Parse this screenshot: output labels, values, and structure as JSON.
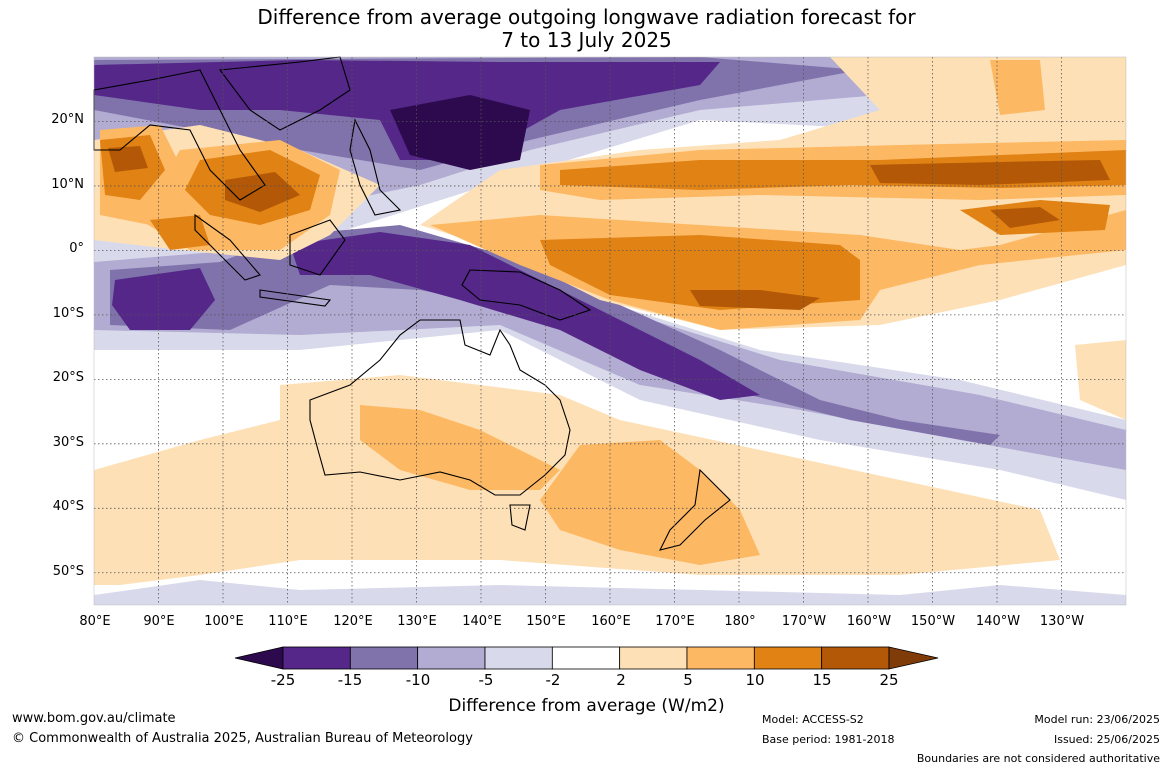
{
  "title": {
    "line1": "Difference from average outgoing longwave radiation forecast for",
    "line2": "7 to 13 July 2025"
  },
  "map": {
    "lat_labels": [
      "20°N",
      "10°N",
      "0°",
      "10°S",
      "20°S",
      "30°S",
      "40°S",
      "50°S"
    ],
    "lon_labels": [
      "80°E",
      "90°E",
      "100°E",
      "110°E",
      "120°E",
      "130°E",
      "140°E",
      "150°E",
      "160°E",
      "170°E",
      "180°",
      "170°W",
      "160°W",
      "150°W",
      "140°W",
      "130°W"
    ],
    "extent": {
      "lon_min": 80,
      "lon_max": 240,
      "lat_min": -55,
      "lat_max": 30
    }
  },
  "colorbar": {
    "ticks": [
      "-25",
      "-15",
      "-10",
      "-5",
      "-2",
      "2",
      "5",
      "10",
      "15",
      "25"
    ],
    "colors": [
      "#2d0a4e",
      "#542788",
      "#8073ac",
      "#b2abd2",
      "#d8daeb",
      "#ffffff",
      "#fee0b6",
      "#fdb863",
      "#e08214",
      "#b35806",
      "#7f3b08"
    ],
    "label": "Difference from average (W/m2)"
  },
  "footer": {
    "website": "www.bom.gov.au/climate",
    "copyright": "© Commonwealth of Australia 2025, Australian Bureau of Meteorology",
    "model": "Model: ACCESS-S2",
    "base_period": "Base period: 1981-2018",
    "model_run": "Model run: 23/06/2025",
    "issued": "Issued: 25/06/2025",
    "disclaimer": "Boundaries are not considered authoritative"
  }
}
